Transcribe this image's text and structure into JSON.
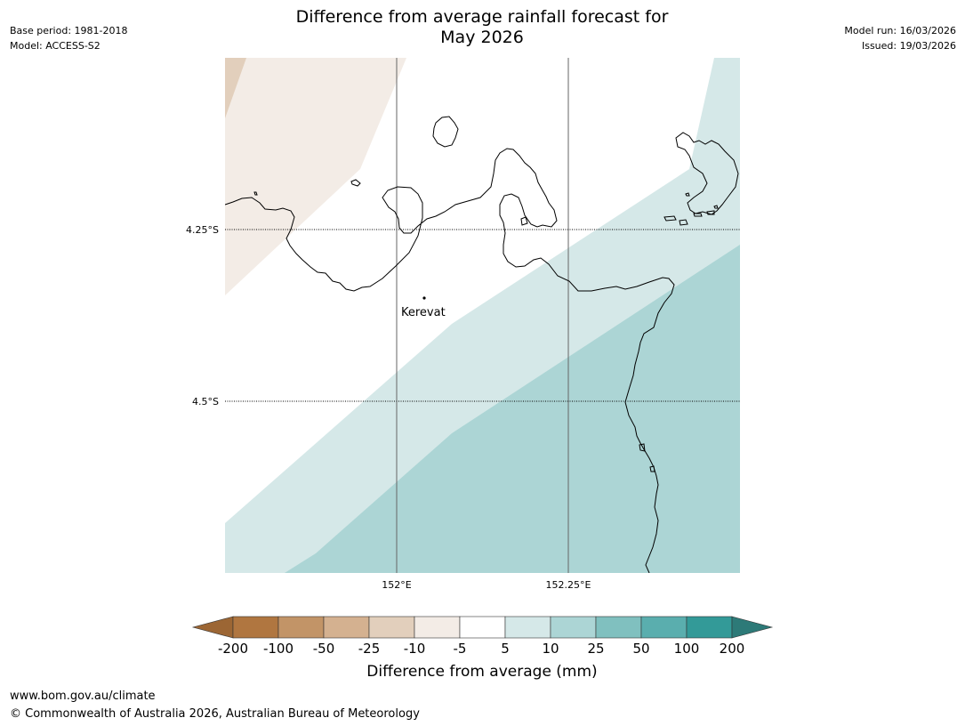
{
  "header": {
    "title_line1": "Difference from average rainfall forecast for",
    "title_line2": "May 2026",
    "base_period": "Base period: 1981-2018",
    "model": "Model: ACCESS-S2",
    "model_run": "Model run: 16/03/2026",
    "issued": "Issued: 19/03/2026"
  },
  "map": {
    "lat_labels": [
      "4.25°S",
      "4.5°S"
    ],
    "lon_labels": [
      "152°E",
      "152.25°E"
    ],
    "place": {
      "name": "Kerevat"
    },
    "colors": {
      "dry_10_25": "#e2cfbc",
      "dry_5_10": "#f3ece6",
      "wet_5_10": "#d5e8e8",
      "wet_10_25": "#acd5d5",
      "gridline": "#666666",
      "coast": "#000000"
    }
  },
  "legend": {
    "title": "Difference from average (mm)",
    "ticks": [
      "-200",
      "-100",
      "-50",
      "-25",
      "-10",
      "-5",
      "5",
      "10",
      "25",
      "50",
      "100",
      "200"
    ],
    "colors": [
      "#9c6634",
      "#b07640",
      "#c29467",
      "#d4b190",
      "#e2cfbc",
      "#f3ece6",
      "#ffffff",
      "#d5e8e8",
      "#acd5d5",
      "#80c0bf",
      "#5aaeae",
      "#339a98",
      "#2d7a78"
    ]
  },
  "footer": {
    "url": "www.bom.gov.au/climate",
    "copyright": "© Commonwealth of Australia 2026, Australian Bureau of Meteorology"
  }
}
